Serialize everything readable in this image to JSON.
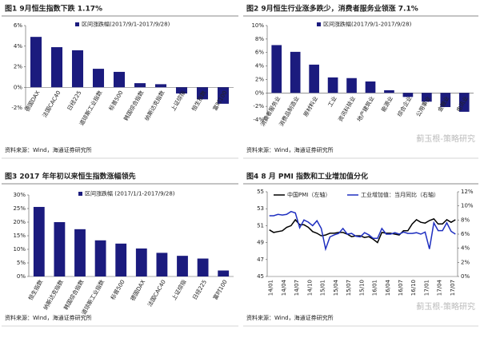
{
  "chart_data": [
    {
      "type": "bar",
      "title": "图1  9月恒生指数下跌 1.17%",
      "categories": [
        "德国DAX",
        "法国CAC40",
        "日经225",
        "道琼斯工业指数",
        "标普500",
        "韩国综合指数",
        "纳斯达克指数",
        "上证综指",
        "恒生指数",
        "富时100"
      ],
      "series": [
        {
          "name": "区间涨跌幅(2017/9/1-2017/9/28)",
          "color": "#1b1b7e",
          "values": [
            4.9,
            3.9,
            3.6,
            1.8,
            1.5,
            0.4,
            0.3,
            -0.6,
            -1.17,
            -1.6
          ]
        }
      ],
      "ylim": [
        -2,
        6
      ],
      "yticks": [
        {
          "value": -2,
          "label": "-2%"
        },
        {
          "value": 0,
          "label": "0%"
        },
        {
          "value": 2,
          "label": "2%"
        },
        {
          "value": 4,
          "label": "4%"
        },
        {
          "value": 6,
          "label": "6%"
        }
      ],
      "source": "资料来源：Wind，海通证券研究所"
    },
    {
      "type": "bar",
      "title": "图2  9月恒生行业涨多跌少，消费者服务业领涨 7.1%",
      "categories": [
        "消费者服务业",
        "消费品制造业",
        "原材料业",
        "工业",
        "资讯科技业",
        "地产建筑业",
        "能源业",
        "综合企业",
        "公用事业",
        "金融业",
        "电讯业"
      ],
      "series": [
        {
          "name": "区间涨跌幅(2017/9/1-2017/9/28)",
          "color": "#1b1b7e",
          "values": [
            7.1,
            6.1,
            4.2,
            2.3,
            2.2,
            1.7,
            0.4,
            -0.6,
            -1.3,
            -2.1,
            -2.8
          ]
        }
      ],
      "ylim": [
        -4,
        10
      ],
      "yticks": [
        {
          "value": -4,
          "label": "-4%"
        },
        {
          "value": -2,
          "label": "-2%"
        },
        {
          "value": 0,
          "label": "0%"
        },
        {
          "value": 2,
          "label": "2%"
        },
        {
          "value": 4,
          "label": "4%"
        },
        {
          "value": 6,
          "label": "6%"
        },
        {
          "value": 8,
          "label": "8%"
        },
        {
          "value": 10,
          "label": "10%"
        }
      ],
      "source": "资料来源：Wind，海通证券研究所",
      "watermark": "蓟玉根-策略研究"
    },
    {
      "type": "bar",
      "title": "图3  2017 年年初以来恒生指数涨幅领先",
      "categories": [
        "恒生指数",
        "纳斯达克指数",
        "韩国综合指数",
        "道琼斯工业指数",
        "标普500",
        "德国DAX",
        "法国CAC40",
        "上证综指",
        "日经225",
        "富时100"
      ],
      "series": [
        {
          "name": "区间涨跌幅 (2017/1/1-2017/9/28)",
          "color": "#1b1b7e",
          "values": [
            25.6,
            20,
            17.4,
            13.3,
            12.1,
            10.3,
            8.7,
            7.6,
            6.6,
            2.2
          ]
        }
      ],
      "ylim": [
        0,
        30
      ],
      "yticks": [
        {
          "value": 0,
          "label": "0%"
        },
        {
          "value": 5,
          "label": "5%"
        },
        {
          "value": 10,
          "label": "10%"
        },
        {
          "value": 15,
          "label": "15%"
        },
        {
          "value": 20,
          "label": "20%"
        },
        {
          "value": 25,
          "label": "25%"
        },
        {
          "value": 30,
          "label": "30%"
        }
      ],
      "source": "资料来源：Wind，海通证券研究所"
    },
    {
      "type": "line",
      "title": "图4  8 月 PMI 指数和工业增加值分化",
      "categories": [
        "14/01",
        null,
        null,
        "14/04",
        null,
        null,
        "14/07",
        null,
        null,
        "14/10",
        null,
        null,
        "15/01",
        null,
        null,
        "15/04",
        null,
        null,
        "15/07",
        null,
        null,
        "15/10",
        null,
        null,
        "16/01",
        null,
        null,
        "16/04",
        null,
        null,
        "16/07",
        null,
        null,
        "16/10",
        null,
        null,
        "17/01",
        null,
        null,
        "17/04",
        null,
        null,
        "17/07",
        null
      ],
      "series": [
        {
          "name": "中国PMI（左轴）",
          "color": "#000000",
          "values": [
            50.5,
            50.2,
            50.3,
            50.4,
            50.8,
            51.0,
            51.7,
            51.1,
            51.1,
            50.8,
            50.3,
            50.1,
            49.8,
            49.9,
            50.1,
            50.1,
            50.2,
            50.2,
            50.0,
            49.7,
            49.8,
            49.8,
            49.6,
            49.7,
            49.4,
            49.0,
            50.2,
            50.1,
            50.1,
            50.0,
            49.9,
            50.4,
            50.4,
            51.2,
            51.7,
            51.4,
            51.3,
            51.6,
            51.8,
            51.2,
            51.2,
            51.7,
            51.4,
            51.7
          ]
        },
        {
          "name": "工业增加值：当月同比（右轴）",
          "color": "#1f2fc0",
          "axis": "y2",
          "values": [
            8.6,
            8.6,
            8.8,
            8.7,
            8.8,
            9.2,
            9.0,
            6.9,
            8.0,
            7.7,
            7.2,
            7.9,
            6.8,
            3.9,
            5.6,
            5.9,
            6.1,
            6.8,
            6.0,
            6.1,
            5.7,
            5.6,
            6.2,
            5.9,
            5.4,
            5.4,
            6.8,
            6.0,
            6.0,
            6.2,
            6.0,
            6.3,
            6.1,
            6.1,
            6.2,
            6.0,
            6.3,
            3.9,
            7.6,
            6.5,
            6.5,
            7.6,
            6.4,
            6.0
          ]
        }
      ],
      "ylim": [
        45,
        55
      ],
      "yticks": [
        45,
        47,
        49,
        51,
        53,
        55
      ],
      "y2lim": [
        0,
        12
      ],
      "y2ticks": [
        {
          "value": 0,
          "label": "0%"
        },
        {
          "value": 2,
          "label": "2%"
        },
        {
          "value": 4,
          "label": "4%"
        },
        {
          "value": 6,
          "label": "6%"
        },
        {
          "value": 8,
          "label": "8%"
        },
        {
          "value": 10,
          "label": "10%"
        },
        {
          "value": 12,
          "label": "12%"
        }
      ],
      "source": "资料来源：Wind，海通证券研究所",
      "watermark": "蓟玉根-策略研究"
    }
  ]
}
